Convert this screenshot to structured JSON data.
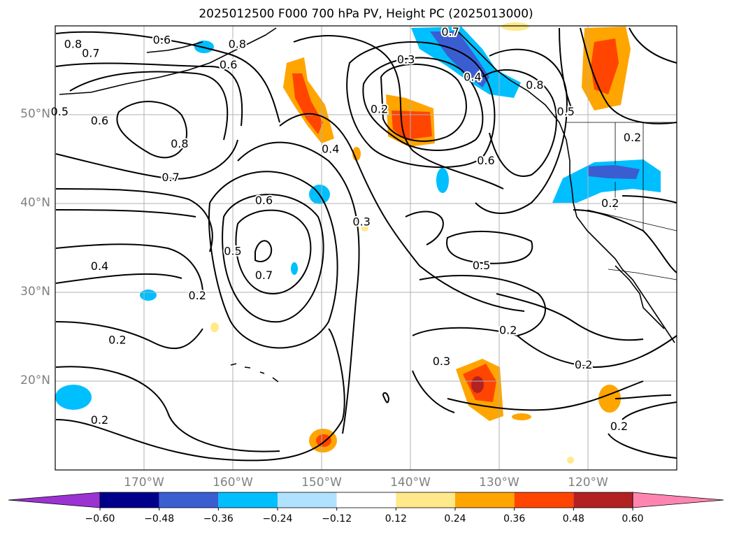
{
  "title": "2025012500 F000 700 hPa PV, Height PC (2025013000)",
  "map": {
    "projection": "lat-lon",
    "lon_range": [
      -180,
      -110
    ],
    "lat_range": [
      10,
      60
    ],
    "lat_ticks": [
      {
        "lat": 50,
        "label": "50°N"
      },
      {
        "lat": 40,
        "label": "40°N"
      },
      {
        "lat": 30,
        "label": "30°N"
      },
      {
        "lat": 20,
        "label": "20°N"
      }
    ],
    "lon_ticks": [
      {
        "lon": -170,
        "label": "170°W"
      },
      {
        "lon": -160,
        "label": "160°W"
      },
      {
        "lon": -150,
        "label": "150°W"
      },
      {
        "lon": -140,
        "label": "140°W"
      },
      {
        "lon": -130,
        "label": "130°W"
      },
      {
        "lon": -120,
        "label": "120°W"
      }
    ],
    "grid": true,
    "contour_labels": [
      {
        "text": "0.8",
        "lon": -178,
        "lat": 57.9
      },
      {
        "text": "0.6",
        "lon": -168.0,
        "lat": 58.4
      },
      {
        "text": "0.7",
        "lon": -176.0,
        "lat": 56.9
      },
      {
        "text": "0.8",
        "lon": -159.5,
        "lat": 57.9
      },
      {
        "text": "0.6",
        "lon": -160.5,
        "lat": 55.6
      },
      {
        "text": "0.7",
        "lon": -135.5,
        "lat": 59.3
      },
      {
        "text": "0.3",
        "lon": -140.5,
        "lat": 56.2
      },
      {
        "text": "0.4",
        "lon": -133.0,
        "lat": 54.2
      },
      {
        "text": "0.8",
        "lon": -126.0,
        "lat": 53.3
      },
      {
        "text": "0.5",
        "lon": -122.5,
        "lat": 50.3
      },
      {
        "text": "0.5",
        "lon": -179.5,
        "lat": 50.3
      },
      {
        "text": "0.6",
        "lon": -175.0,
        "lat": 49.3
      },
      {
        "text": "0.8",
        "lon": -166.0,
        "lat": 46.7
      },
      {
        "text": "0.2",
        "lon": -143.5,
        "lat": 50.6
      },
      {
        "text": "0.4",
        "lon": -149.0,
        "lat": 46.1
      },
      {
        "text": "0.6",
        "lon": -131.5,
        "lat": 44.8
      },
      {
        "text": "0.2",
        "lon": -115.0,
        "lat": 47.4
      },
      {
        "text": "0.7",
        "lon": -167.0,
        "lat": 42.9
      },
      {
        "text": "0.6",
        "lon": -156.5,
        "lat": 40.3
      },
      {
        "text": "0.3",
        "lon": -145.5,
        "lat": 37.9
      },
      {
        "text": "0.2",
        "lon": -117.5,
        "lat": 40.0
      },
      {
        "text": "0.5",
        "lon": -160.0,
        "lat": 34.6
      },
      {
        "text": "0.4",
        "lon": -175.0,
        "lat": 32.9
      },
      {
        "text": "0.7",
        "lon": -156.5,
        "lat": 31.9
      },
      {
        "text": "0.5",
        "lon": -132.0,
        "lat": 33.0
      },
      {
        "text": "0.2",
        "lon": -164.0,
        "lat": 29.6
      },
      {
        "text": "0.2",
        "lon": -173.0,
        "lat": 24.6
      },
      {
        "text": "0.2",
        "lon": -129.0,
        "lat": 25.7
      },
      {
        "text": "0.3",
        "lon": -136.5,
        "lat": 22.2
      },
      {
        "text": "0.2",
        "lon": -120.5,
        "lat": 21.8
      },
      {
        "text": "0.2",
        "lon": -175.0,
        "lat": 15.6
      },
      {
        "text": "0.2",
        "lon": -116.5,
        "lat": 14.9
      }
    ]
  },
  "colorbar": {
    "levels": [
      -0.6,
      -0.48,
      -0.36,
      -0.24,
      -0.12,
      0.12,
      0.24,
      0.36,
      0.48,
      0.6
    ],
    "tick_labels": [
      "−0.60",
      "−0.48",
      "−0.36",
      "−0.24",
      "−0.12",
      "0.12",
      "0.24",
      "0.36",
      "0.48",
      "0.60"
    ],
    "colors": [
      "#9b32d2",
      "#00008b",
      "#3a5ed2",
      "#00bfff",
      "#b0e2ff",
      "#ffffff",
      "#ffe98a",
      "#ffa500",
      "#ff4500",
      "#b22222",
      "#ff85b0"
    ]
  }
}
